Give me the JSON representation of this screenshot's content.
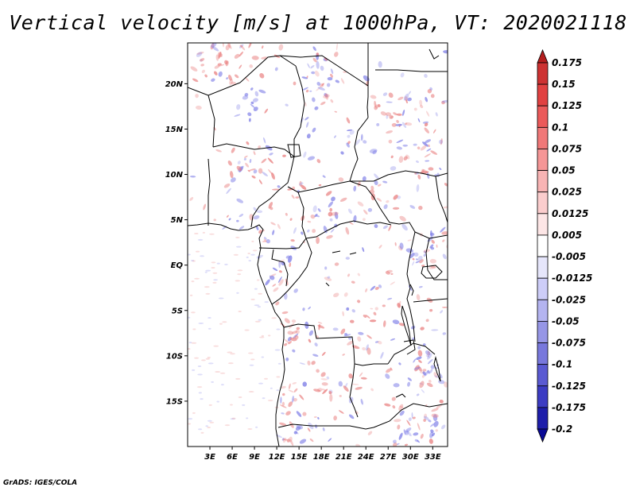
{
  "title": "Vertical velocity [m/s] at 1000hPa, VT: 2020021118",
  "credit": "GrADS: IGES/COLA",
  "map": {
    "lon_range": [
      0,
      35
    ],
    "lat_range": [
      -20,
      24.5
    ],
    "lat_ticks": [
      {
        "label": "20N",
        "lat": 20
      },
      {
        "label": "15N",
        "lat": 15
      },
      {
        "label": "10N",
        "lat": 10
      },
      {
        "label": "5N",
        "lat": 5
      },
      {
        "label": "EQ",
        "lat": 0
      },
      {
        "label": "5S",
        "lat": -5
      },
      {
        "label": "10S",
        "lat": -10
      },
      {
        "label": "15S",
        "lat": -15
      }
    ],
    "lon_ticks": [
      {
        "label": "3E",
        "lon": 3
      },
      {
        "label": "6E",
        "lon": 6
      },
      {
        "label": "9E",
        "lon": 9
      },
      {
        "label": "12E",
        "lon": 12
      },
      {
        "label": "15E",
        "lon": 15
      },
      {
        "label": "18E",
        "lon": 18
      },
      {
        "label": "21E",
        "lon": 21
      },
      {
        "label": "24E",
        "lon": 24
      },
      {
        "label": "27E",
        "lon": 27
      },
      {
        "label": "30E",
        "lon": 30
      },
      {
        "label": "33E",
        "lon": 33
      }
    ]
  },
  "colorbar": {
    "levels": [
      "0.175",
      "0.15",
      "0.125",
      "0.1",
      "0.075",
      "0.05",
      "0.025",
      "0.0125",
      "0.005",
      "-0.005",
      "-0.0125",
      "-0.025",
      "-0.05",
      "-0.075",
      "-0.1",
      "-0.125",
      "-0.175",
      "-0.2"
    ],
    "colors": [
      "#b41e1e",
      "#cd3232",
      "#e14141",
      "#eb5a5a",
      "#f07878",
      "#f59696",
      "#f8b4b4",
      "#fbcdcd",
      "#fde6e6",
      "#ffffff",
      "#e6e6fb",
      "#cdcdf8",
      "#b4b4f0",
      "#9696e6",
      "#7878dc",
      "#5a5ad2",
      "#3c3cc3",
      "#1e1eaa",
      "#0a0a96"
    ]
  },
  "positive_color": "#e87a7a",
  "negative_color": "#7a7ae6"
}
